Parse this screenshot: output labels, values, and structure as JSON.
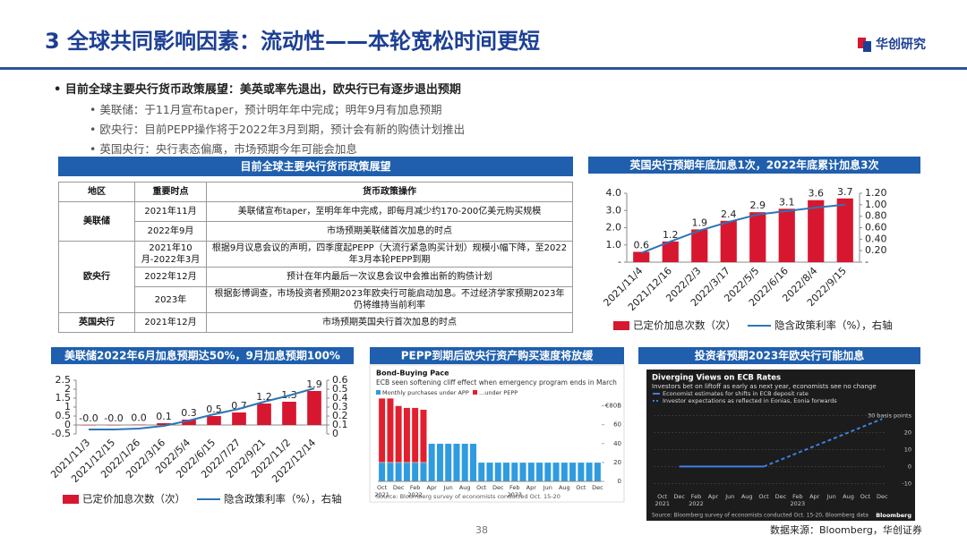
{
  "header": {
    "title": "3 全球共同影响因素：流动性——本轮宽松时间更短",
    "logo": "华创研究"
  },
  "bullets": {
    "main": "目前全球主要央行货币政策展望：美英或率先退出，欧央行已有逐步退出预期",
    "items": [
      "美联储：于11月宣布taper，预计明年年中完成；明年9月有加息预期",
      "欧央行：目前PEPP操作将于2022年3月到期，预计会有新的购债计划推出",
      "英国央行：央行表态偏鹰，市场预期今年可能会加息"
    ]
  },
  "table": {
    "title": "目前全球主要央行货币政策展望",
    "columns": [
      "地区",
      "重要时点",
      "货币政策操作"
    ],
    "groups": [
      {
        "region": "美联储",
        "rows": [
          [
            "2021年11月",
            "美联储宣布taper，至明年年中完成，即每月减少约170-200亿美元购买规模"
          ],
          [
            "2022年9月",
            "市场预期美联储首次加息的时点"
          ]
        ]
      },
      {
        "region": "欧央行",
        "rows": [
          [
            "2021年10月-2022年3月",
            "根据9月议息会议的声明，四季度起PEPP（大流行紧急购买计划）规模小幅下降，至2022年3月本轮PEPP到期"
          ],
          [
            "2022年12月",
            "预计在年内最后一次议息会议中会推出新的购债计划"
          ],
          [
            "2023年",
            "根据彭博调查，市场投资者预期2023年欧央行可能启动加息。不过经济学家预期2023年仍将维持当前利率"
          ]
        ]
      },
      {
        "region": "英国央行",
        "rows": [
          [
            "2021年12月",
            "市场预期英国央行首次加息的时点"
          ]
        ]
      }
    ]
  },
  "chart_data": [
    {
      "type": "combo",
      "title": "英国央行预期年底加息1次，2022年底累计加息3次",
      "categories": [
        "2021/11/4",
        "2021/12/16",
        "2022/2/3",
        "2022/3/17",
        "2022/5/5",
        "2022/6/16",
        "2022/8/4",
        "2022/9/15"
      ],
      "series": [
        {
          "name": "已定价加息次数（次）",
          "type": "bar",
          "color": "#d7172f",
          "values": [
            0.6,
            1.2,
            1.9,
            2.4,
            2.9,
            3.1,
            3.6,
            3.7
          ]
        },
        {
          "name": "隐含政策利率（%），右轴",
          "type": "line",
          "axis": "y2",
          "color": "#2e75b6",
          "values": [
            0.16,
            0.36,
            0.55,
            0.7,
            0.83,
            0.89,
            0.95,
            1.0
          ]
        }
      ],
      "ylim": [
        0,
        4
      ],
      "yticks": [
        {
          "value": 0,
          "label": "-"
        },
        {
          "value": 1,
          "label": "1.0"
        },
        {
          "value": 2,
          "label": "2.0"
        },
        {
          "value": 3,
          "label": "3.0"
        },
        {
          "value": 4,
          "label": "4.0"
        }
      ],
      "y2lim": [
        0,
        1.2
      ],
      "y2ticks": [
        {
          "value": 0,
          "label": "-"
        },
        {
          "value": 0.2,
          "label": "0.20"
        },
        {
          "value": 0.4,
          "label": "0.40"
        },
        {
          "value": 0.6,
          "label": "0.60"
        },
        {
          "value": 0.8,
          "label": "0.80"
        },
        {
          "value": 1,
          "label": "1.00"
        },
        {
          "value": 1.2,
          "label": "1.20"
        }
      ]
    },
    {
      "type": "combo",
      "title": "美联储2022年6月加息预期达50%，9月加息预期100%",
      "categories": [
        "2021/11/3",
        "2021/12/15",
        "2022/1/26",
        "2022/3/16",
        "2022/5/4",
        "2022/6/15",
        "2022/7/27",
        "2022/9/21",
        "2022/11/2",
        "2022/12/14"
      ],
      "series": [
        {
          "name": "已定价加息次数（次）",
          "type": "bar",
          "color": "#d7172f",
          "values": [
            -0.02,
            -0.02,
            0.02,
            0.1,
            0.3,
            0.5,
            0.7,
            1.2,
            1.3,
            1.9
          ],
          "value_labels": [
            "-0.0",
            "-0.0",
            "0.0",
            "0.1",
            "0.3",
            "0.5",
            "0.7",
            "1.2",
            "1.3",
            "1.9"
          ]
        },
        {
          "name": "隐含政策利率（%），右轴",
          "type": "line",
          "axis": "y2",
          "color": "#2e75b6",
          "values": [
            0.05,
            0.05,
            0.06,
            0.09,
            0.15,
            0.22,
            0.28,
            0.36,
            0.43,
            0.51
          ]
        }
      ],
      "ylim": [
        -0.5,
        2.5
      ],
      "yticks": [
        -0.5,
        0,
        0.5,
        1,
        1.5,
        2,
        2.5
      ],
      "y2lim": [
        0,
        0.6
      ],
      "y2ticks": [
        0,
        0.1,
        0.2,
        0.3,
        0.4,
        0.5,
        0.6
      ]
    },
    {
      "type": "bar",
      "stacked": true,
      "title": "PEPP到期后欧央行资产购买速度将放缓",
      "inner_title": "Bond-Buying Pace",
      "subtitle": "ECB seen softening cliff effect when emergency program ends in March",
      "categories": [
        "Oct",
        null,
        "Dec",
        null,
        "Feb",
        null,
        "Apr",
        null,
        "Jun",
        null,
        "Aug",
        null,
        "Oct",
        null,
        "Dec",
        null,
        "Feb",
        null,
        "Apr",
        null,
        "Jun",
        null,
        "Aug",
        null,
        "Oct",
        null,
        "Dec"
      ],
      "category_years": [
        "2021",
        null,
        null,
        null,
        "2022",
        null,
        null,
        null,
        null,
        null,
        null,
        null,
        null,
        null,
        null,
        null,
        "2023",
        null,
        null,
        null,
        null,
        null,
        null,
        null,
        null,
        null,
        null
      ],
      "series": [
        {
          "name": "Monthly purchases under APP",
          "color": "#2f9be0",
          "values": [
            20,
            20,
            20,
            20,
            20,
            20,
            40,
            40,
            40,
            40,
            40,
            40,
            20,
            20,
            20,
            20,
            20,
            20,
            20,
            20,
            20,
            20,
            20,
            20,
            20,
            20,
            20
          ]
        },
        {
          "name": "...under PEPP",
          "color": "#e0202e",
          "values": [
            68,
            68,
            60,
            58,
            58,
            56,
            null,
            null,
            null,
            null,
            null,
            null,
            null,
            null,
            null,
            null,
            null,
            null,
            null,
            null,
            null,
            null,
            null,
            null,
            null,
            null,
            null
          ]
        }
      ],
      "ylim": [
        0,
        90
      ],
      "yticks": [
        0,
        20,
        40,
        60,
        {
          "value": 80,
          "label": "€80B"
        }
      ],
      "source": "Source: Bloomberg survey of economists conducted Oct. 15-20"
    },
    {
      "type": "line",
      "title": "投资者预期2023年欧央行可能加息",
      "inner_title": "Diverging Views on ECB Rates",
      "subtitle": "Investors bet on liftoff as early as next year, economists see no change",
      "categories": [
        "Oct",
        null,
        "Dec",
        null,
        "Feb",
        null,
        "Apr",
        null,
        "Jun",
        null,
        "Aug",
        null,
        "Oct",
        null,
        "Dec",
        null,
        "Feb",
        null,
        "Apr",
        null,
        "Jun",
        null,
        "Aug",
        null,
        "Oct",
        null,
        "Dec"
      ],
      "category_years": [
        "2021",
        null,
        null,
        null,
        "2022",
        null,
        null,
        null,
        null,
        null,
        null,
        null,
        null,
        null,
        null,
        null,
        "2023",
        null,
        null,
        null,
        null,
        null,
        null,
        null,
        null,
        null,
        null
      ],
      "series": [
        {
          "name": "Economist estimates for shifts in ECB deposit rate",
          "color": "#3f7fe0",
          "values": [
            null,
            null,
            0,
            0,
            0,
            0,
            0,
            0,
            0,
            0,
            0,
            0,
            0,
            null,
            null,
            null,
            null,
            null,
            null,
            null,
            null,
            null,
            null,
            null,
            null,
            null,
            null
          ]
        },
        {
          "name": "Investor expectations as reflected in Eonias, Eonia forwards",
          "color": "#3f7fe0",
          "dash": true,
          "values": [
            null,
            null,
            null,
            null,
            null,
            null,
            null,
            null,
            null,
            null,
            null,
            null,
            0,
            2,
            4,
            6,
            8,
            10,
            12,
            14,
            16,
            18,
            20,
            22,
            24,
            26,
            28
          ]
        }
      ],
      "ylim": [
        -14,
        36
      ],
      "yticks": [
        -10,
        0,
        10,
        20,
        {
          "value": 30,
          "label": "30 basis points"
        }
      ],
      "grid": true,
      "source": "Source: Bloomberg survey of economists conducted Oct. 15-20, Bloomberg data",
      "brand": "Bloomberg"
    }
  ],
  "footer": {
    "page": "38",
    "source": "数据来源：Bloomberg，华创证券"
  }
}
